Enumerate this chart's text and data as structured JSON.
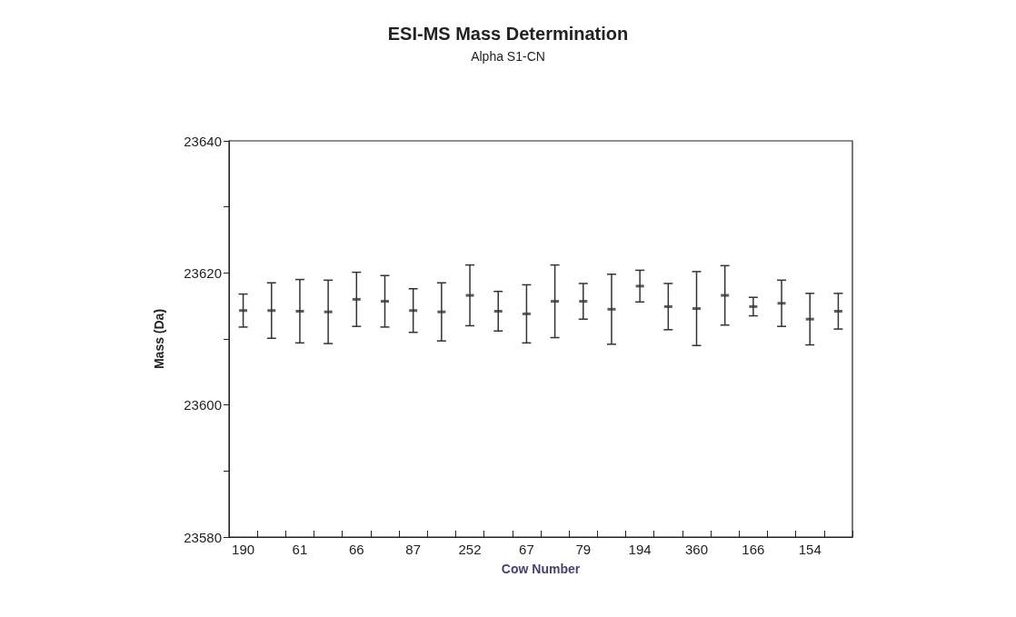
{
  "chart_data": {
    "type": "scatter",
    "title": "ESI-MS Mass Determination",
    "subtitle": "Alpha S1-CN",
    "xlabel": "Cow Number",
    "ylabel": "Mass (Da)",
    "categories": [
      "190",
      null,
      "61",
      null,
      "66",
      null,
      "87",
      null,
      "252",
      null,
      "67",
      null,
      "79",
      null,
      "194",
      null,
      "360",
      null,
      "166",
      null,
      "154",
      null
    ],
    "values": [
      23614.3,
      23614.3,
      23614.2,
      23614.1,
      23616.0,
      23615.7,
      23614.3,
      23614.1,
      23616.6,
      23614.2,
      23613.8,
      23615.7,
      23615.7,
      23614.5,
      23618.0,
      23614.9,
      23614.6,
      23616.6,
      23614.9,
      23615.4,
      23613.0,
      23614.2
    ],
    "errors": [
      2.5,
      4.2,
      4.8,
      4.8,
      4.1,
      3.9,
      3.3,
      4.4,
      4.6,
      3.0,
      4.4,
      5.5,
      2.7,
      5.3,
      2.4,
      3.5,
      5.6,
      4.5,
      1.4,
      3.5,
      3.9,
      2.7
    ],
    "color": "#333333",
    "ylim": [
      23580,
      23640
    ],
    "yticks": [
      23580,
      {
        "value": 23590,
        "label": null
      },
      23600,
      {
        "value": 23610,
        "label": null
      },
      23620,
      {
        "value": 23630,
        "label": null
      },
      23640
    ],
    "grid": false,
    "legend": false
  }
}
